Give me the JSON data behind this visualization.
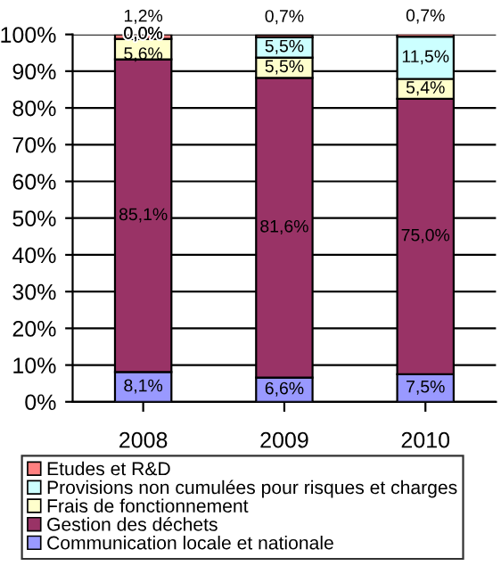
{
  "chart_data": {
    "type": "bar",
    "stacked": true,
    "categories": [
      "2008",
      "2009",
      "2010"
    ],
    "series": [
      {
        "name": "Communication locale et nationale",
        "color": "#9999ff",
        "values": [
          8.1,
          6.6,
          7.5
        ],
        "value_labels": [
          "8,1%",
          "6,6%",
          "7,5%"
        ]
      },
      {
        "name": "Gestion des déchets",
        "color": "#993366",
        "values": [
          85.1,
          81.6,
          75.0
        ],
        "value_labels": [
          "85,1%",
          "81,6%",
          "75,0%"
        ]
      },
      {
        "name": "Frais de fonctionnement",
        "color": "#ffffcc",
        "values": [
          5.6,
          5.5,
          5.4
        ],
        "value_labels": [
          "5,6%",
          "5,5%",
          "5,4%"
        ]
      },
      {
        "name": "Provisions non cumulées pour risques et charges",
        "color": "#ccffff",
        "values": [
          0.0,
          5.5,
          11.5
        ],
        "value_labels": [
          "0,0%",
          "5,5%",
          "11,5%"
        ]
      },
      {
        "name": "Etudes et R&D",
        "color": "#ff8080",
        "values": [
          1.2,
          0.7,
          0.7
        ],
        "value_labels": [
          "1,2%",
          "0,7%",
          "0,7%"
        ]
      }
    ],
    "ylim": [
      0,
      100
    ],
    "yticks": [
      {
        "value": 0,
        "label": "0%"
      },
      {
        "value": 10,
        "label": "10%"
      },
      {
        "value": 20,
        "label": "20%"
      },
      {
        "value": 30,
        "label": "30%"
      },
      {
        "value": 40,
        "label": "40%"
      },
      {
        "value": 50,
        "label": "50%"
      },
      {
        "value": 60,
        "label": "60%"
      },
      {
        "value": 70,
        "label": "70%"
      },
      {
        "value": 80,
        "label": "80%"
      },
      {
        "value": 90,
        "label": "90%"
      },
      {
        "value": 100,
        "label": "100%"
      }
    ],
    "grid": "y",
    "legend": "bottom"
  }
}
